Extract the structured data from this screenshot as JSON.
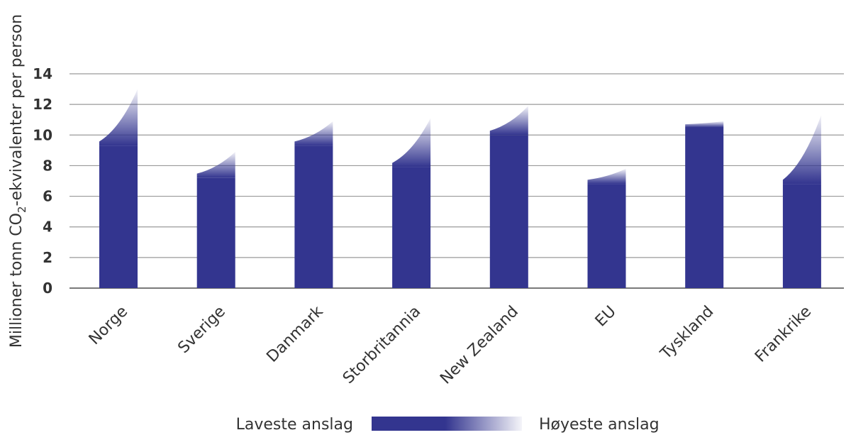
{
  "chart_data": {
    "type": "bar",
    "ylabel_parts": [
      "Millioner tonn CO",
      "2",
      "-ekvivalenter per person"
    ],
    "yticks": [
      "0",
      "2",
      "4",
      "6",
      "8",
      "10",
      "12",
      "14"
    ],
    "ylim": [
      0,
      14
    ],
    "grid": true,
    "categories": [
      "Norge",
      "Sverige",
      "Danmark",
      "Storbritannia",
      "New Zealand",
      "EU",
      "Tyskland",
      "Frankrike"
    ],
    "series": [
      {
        "name": "Laveste anslag",
        "values": [
          9.3,
          7.2,
          9.3,
          7.9,
          10.0,
          6.8,
          10.5,
          6.8
        ]
      },
      {
        "name": "Høyeste anslag",
        "values": [
          13.0,
          8.9,
          10.9,
          11.1,
          11.9,
          7.8,
          10.9,
          11.3
        ]
      }
    ],
    "legend": {
      "position": "bottom",
      "low_label": "Laveste anslag",
      "high_label": "Høyeste anslag"
    },
    "colors": {
      "bar": "#33358f",
      "grid": "#9a9a9a",
      "axis": "#7a7a7a",
      "text": "#333333"
    }
  }
}
